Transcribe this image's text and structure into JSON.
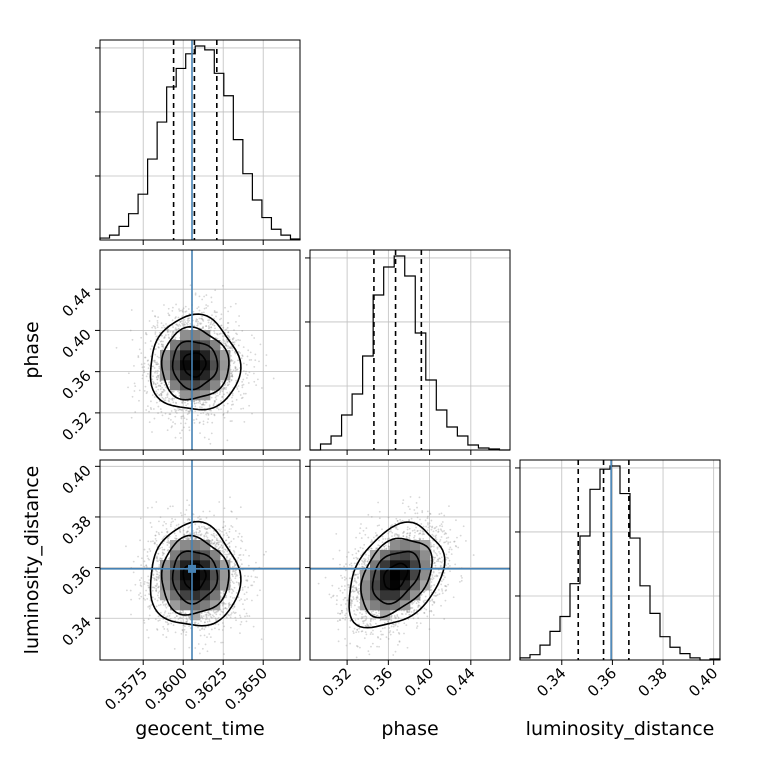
{
  "chart_data": {
    "type": "corner",
    "parameters": [
      "geocent_time",
      "phase",
      "luminosity_distance"
    ],
    "axis_labels": {
      "geocent_time": "geocent_time",
      "phase": "phase",
      "luminosity_distance": "luminosity_distance"
    },
    "ranges": {
      "geocent_time": [
        0.3548,
        0.3673
      ],
      "phase": [
        0.284,
        0.478
      ],
      "luminosity_distance": [
        0.3235,
        0.4025
      ]
    },
    "ticks": {
      "geocent_time": [
        "0.3575",
        "0.3600",
        "0.3625",
        "0.3650"
      ],
      "phase": [
        "0.32",
        "0.36",
        "0.40",
        "0.44"
      ],
      "luminosity_distance": [
        "0.34",
        "0.36",
        "0.38",
        "0.40"
      ]
    },
    "truths": {
      "geocent_time": 0.36055,
      "phase": null,
      "luminosity_distance": 0.3595
    },
    "quantiles": {
      "geocent_time": [
        0.3594,
        0.3607,
        0.3621
      ],
      "phase": [
        0.346,
        0.367,
        0.392
      ],
      "luminosity_distance": [
        0.3465,
        0.3565,
        0.3665
      ]
    },
    "histograms": {
      "geocent_time": [
        2,
        5,
        14,
        27,
        47,
        83,
        121,
        157,
        176,
        191,
        199,
        195,
        171,
        148,
        103,
        68,
        41,
        23,
        11,
        5,
        1
      ],
      "phase": [
        0,
        6,
        14,
        35,
        56,
        94,
        155,
        183,
        194,
        174,
        117,
        70,
        40,
        23,
        14,
        5,
        2,
        1,
        0
      ],
      "luminosity_distance": [
        2,
        5,
        14,
        27,
        41,
        72,
        117,
        161,
        180,
        183,
        157,
        115,
        70,
        44,
        22,
        12,
        6,
        2,
        0,
        1
      ]
    },
    "histogram_peaks": {
      "geocent_time": 199,
      "phase": 194,
      "luminosity_distance": 183
    },
    "pairs": [
      {
        "x": "geocent_time",
        "y": "phase",
        "center": [
          0.3607,
          0.367
        ],
        "sigma": [
          0.0014,
          0.023
        ],
        "rho": 0.0
      },
      {
        "x": "geocent_time",
        "y": "luminosity_distance",
        "center": [
          0.3607,
          0.3565
        ],
        "sigma": [
          0.0014,
          0.0102
        ],
        "rho": 0.0
      },
      {
        "x": "phase",
        "y": "luminosity_distance",
        "center": [
          0.367,
          0.3565
        ],
        "sigma": [
          0.023,
          0.0102
        ],
        "rho": 0.35
      }
    ],
    "contour_levels_sigma": [
      0.5,
      1.0,
      1.5,
      2.0
    ],
    "truth_color": "#4682b4",
    "grid": true,
    "legend": "none"
  }
}
